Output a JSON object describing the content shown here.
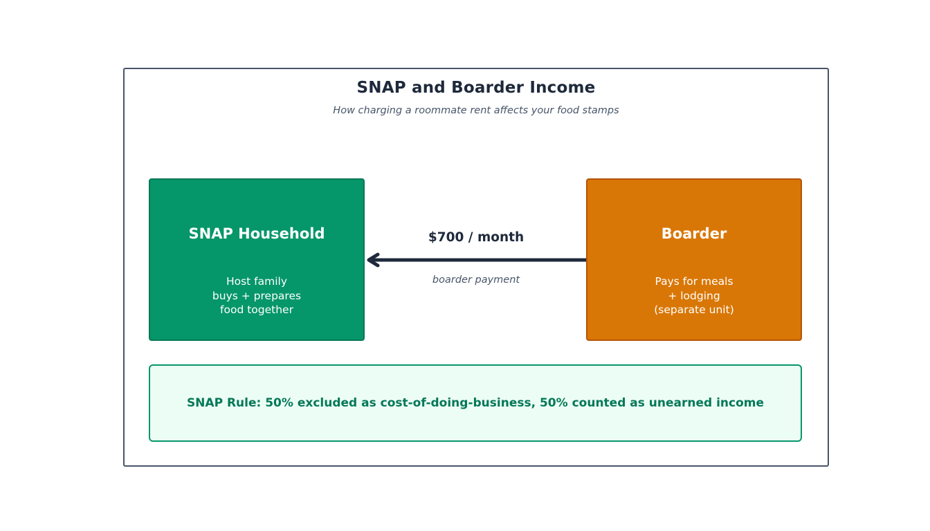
{
  "header": {
    "title": "SNAP and Boarder Income",
    "subtitle": "How charging a roommate rent affects your food stamps"
  },
  "household": {
    "title": "SNAP Household",
    "lines": [
      "Host family",
      "buys + prepares",
      "food together"
    ],
    "color": "#059669"
  },
  "boarder": {
    "title": "Boarder",
    "lines": [
      "Pays for meals",
      "+ lodging",
      "(separate unit)"
    ],
    "color": "#d97706"
  },
  "flow": {
    "amount": "$700 / month",
    "label": "boarder payment",
    "direction": "boarder-to-household"
  },
  "rule": {
    "text": "SNAP Rule: 50% excluded as cost-of-doing-business, 50% counted as unearned income"
  }
}
